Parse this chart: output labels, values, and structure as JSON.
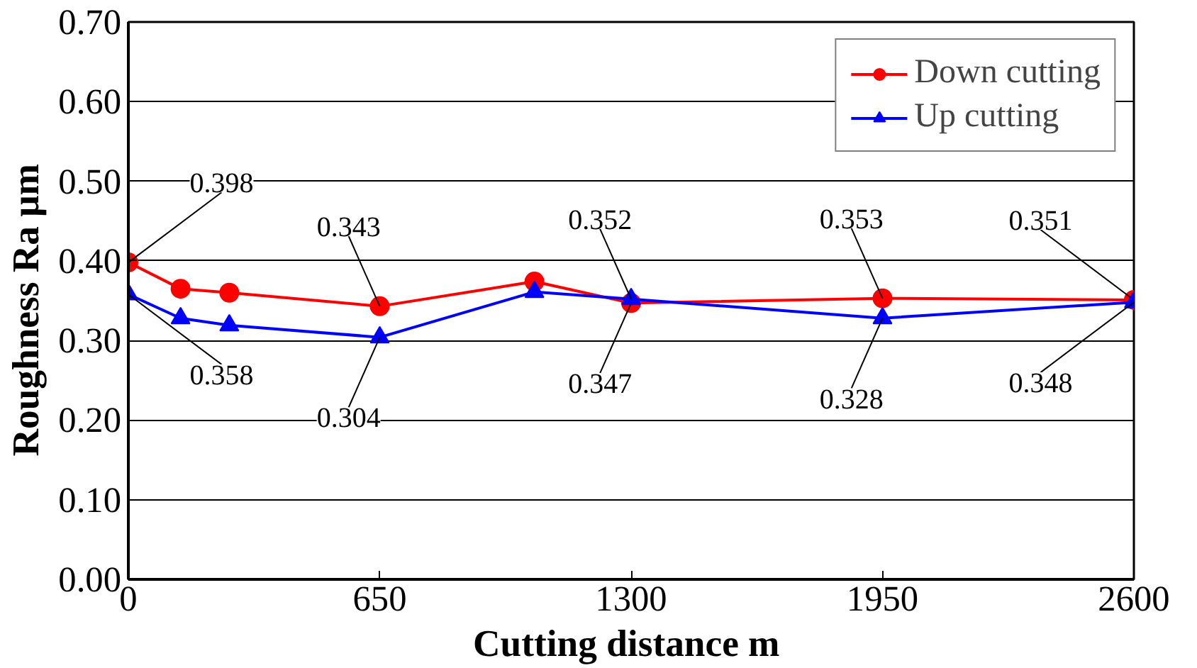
{
  "chart_data": {
    "type": "line",
    "xlabel": "Cutting distance  m",
    "ylabel": "Roughness  Ra  μm",
    "x": [
      0,
      135,
      261,
      650,
      1050,
      1300,
      1950,
      2600
    ],
    "series": [
      {
        "name": "Down cutting",
        "color": "#ff0000",
        "marker": "circle",
        "values": [
          0.398,
          0.365,
          0.36,
          0.343,
          0.374,
          0.347,
          0.353,
          0.351
        ],
        "value_labels": [
          "0.398",
          null,
          null,
          "0.343",
          null,
          "0.347",
          "0.353",
          "0.351"
        ]
      },
      {
        "name": "Up cutting",
        "color": "#0000ff",
        "marker": "triangle",
        "values": [
          0.358,
          0.328,
          0.319,
          0.304,
          0.361,
          0.352,
          0.328,
          0.348
        ],
        "value_labels": [
          "0.358",
          null,
          null,
          "0.304",
          null,
          "0.352",
          "0.328",
          "0.348"
        ]
      }
    ],
    "xlim": [
      0,
      2600
    ],
    "ylim": [
      0,
      0.7
    ],
    "xticks": [
      0,
      650,
      1300,
      1950,
      2600
    ],
    "yticks": [
      {
        "value": 0,
        "label": "0.00"
      },
      {
        "value": 0.1,
        "label": "0.10"
      },
      {
        "value": 0.2,
        "label": "0.20"
      },
      {
        "value": 0.3,
        "label": "0.30"
      },
      {
        "value": 0.4,
        "label": "0.40"
      },
      {
        "value": 0.5,
        "label": "0.50"
      },
      {
        "value": 0.6,
        "label": "0.60"
      },
      {
        "value": 0.7,
        "label": "0.70"
      }
    ],
    "grid": "y",
    "legend": "top right",
    "line_style": "solid"
  }
}
